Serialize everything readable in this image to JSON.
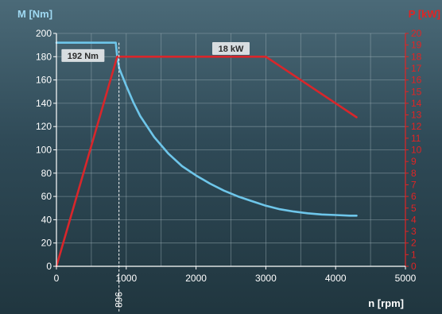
{
  "chart_data": {
    "type": "line",
    "left_axis_title": "M [Nm]",
    "right_axis_title": "P [kW]",
    "x_axis_title": "n [rpm]",
    "xlim": [
      0,
      5000
    ],
    "left_ylim": [
      0,
      200
    ],
    "right_ylim": [
      0,
      20
    ],
    "x_ticks": [
      {
        "value": 0,
        "label": "0"
      },
      {
        "value": 1000,
        "label": "1000"
      },
      {
        "value": 2000,
        "label": "2000"
      },
      {
        "value": 3000,
        "label": "3000"
      },
      {
        "value": 4000,
        "label": "4000"
      },
      {
        "value": 5000,
        "label": "5000"
      }
    ],
    "left_ticks": [
      0,
      20,
      40,
      60,
      80,
      100,
      120,
      140,
      160,
      180,
      200
    ],
    "right_ticks": [
      0,
      1,
      2,
      3,
      4,
      5,
      6,
      7,
      8,
      9,
      10,
      11,
      12,
      13,
      14,
      15,
      16,
      17,
      18,
      19,
      20
    ],
    "grid": true,
    "colors": {
      "left_axis": "#9fd9f2",
      "right_axis": "#e02424",
      "torque": "#6ec6ea",
      "power": "#d9262b",
      "grid": "#9fb0b8",
      "annotation_bg": "#d8dde0",
      "annotation_text": "#2a2a2a",
      "marker_label": "#ffffff"
    },
    "series": [
      {
        "axis": "left",
        "color_key": "torque",
        "x": [
          0,
          850,
          870,
          900,
          1000,
          1100,
          1200,
          1400,
          1600,
          1800,
          2000,
          2200,
          2400,
          2600,
          2800,
          3000,
          3200,
          3400,
          3600,
          3800,
          4000,
          4200,
          4300
        ],
        "y": [
          192,
          192,
          180,
          170,
          155,
          141,
          129,
          111,
          97,
          86,
          78,
          71,
          65,
          60,
          56,
          52,
          49,
          47,
          45.5,
          44.5,
          44,
          43.5,
          43.5
        ]
      },
      {
        "axis": "right",
        "color_key": "power",
        "x": [
          0,
          870,
          3000,
          4300
        ],
        "y": [
          0,
          18,
          18,
          12.8
        ]
      }
    ],
    "marker": {
      "value": 896,
      "label": "896"
    },
    "annotations": [
      {
        "text": "192 Nm",
        "x": 380,
        "y": 181
      },
      {
        "text": "18 kW",
        "x": 2500,
        "y": 187
      }
    ]
  }
}
